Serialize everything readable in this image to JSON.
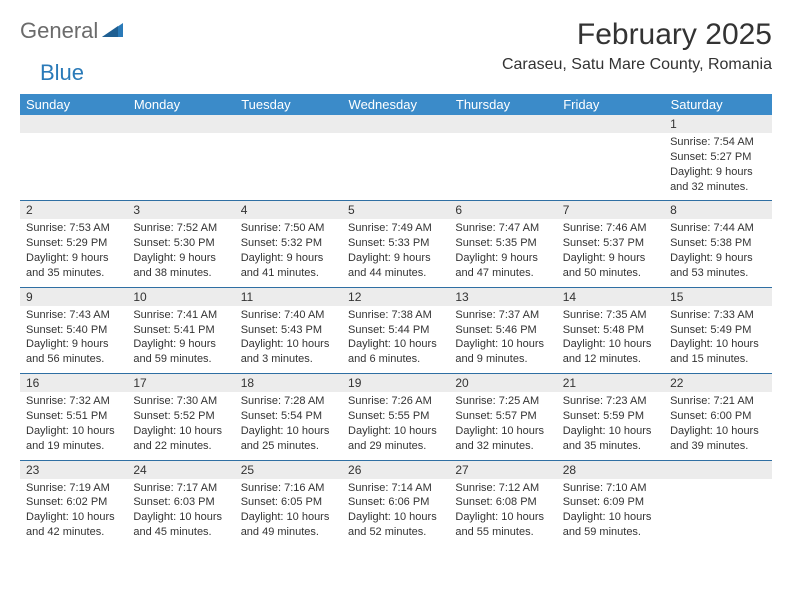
{
  "logo": {
    "general": "General",
    "blue": "Blue"
  },
  "title": "February 2025",
  "location": "Caraseu, Satu Mare County, Romania",
  "colors": {
    "header_bg": "#3b8bc9",
    "header_text": "#ffffff",
    "daynum_bg": "#ececec",
    "week_border": "#2f6fa3",
    "text": "#333333",
    "logo_gray": "#6b6b6b",
    "logo_blue": "#2a7ab8"
  },
  "dow": [
    "Sunday",
    "Monday",
    "Tuesday",
    "Wednesday",
    "Thursday",
    "Friday",
    "Saturday"
  ],
  "weeks": [
    [
      null,
      null,
      null,
      null,
      null,
      null,
      {
        "n": "1",
        "sr": "Sunrise: 7:54 AM",
        "ss": "Sunset: 5:27 PM",
        "dl": "Daylight: 9 hours and 32 minutes."
      }
    ],
    [
      {
        "n": "2",
        "sr": "Sunrise: 7:53 AM",
        "ss": "Sunset: 5:29 PM",
        "dl": "Daylight: 9 hours and 35 minutes."
      },
      {
        "n": "3",
        "sr": "Sunrise: 7:52 AM",
        "ss": "Sunset: 5:30 PM",
        "dl": "Daylight: 9 hours and 38 minutes."
      },
      {
        "n": "4",
        "sr": "Sunrise: 7:50 AM",
        "ss": "Sunset: 5:32 PM",
        "dl": "Daylight: 9 hours and 41 minutes."
      },
      {
        "n": "5",
        "sr": "Sunrise: 7:49 AM",
        "ss": "Sunset: 5:33 PM",
        "dl": "Daylight: 9 hours and 44 minutes."
      },
      {
        "n": "6",
        "sr": "Sunrise: 7:47 AM",
        "ss": "Sunset: 5:35 PM",
        "dl": "Daylight: 9 hours and 47 minutes."
      },
      {
        "n": "7",
        "sr": "Sunrise: 7:46 AM",
        "ss": "Sunset: 5:37 PM",
        "dl": "Daylight: 9 hours and 50 minutes."
      },
      {
        "n": "8",
        "sr": "Sunrise: 7:44 AM",
        "ss": "Sunset: 5:38 PM",
        "dl": "Daylight: 9 hours and 53 minutes."
      }
    ],
    [
      {
        "n": "9",
        "sr": "Sunrise: 7:43 AM",
        "ss": "Sunset: 5:40 PM",
        "dl": "Daylight: 9 hours and 56 minutes."
      },
      {
        "n": "10",
        "sr": "Sunrise: 7:41 AM",
        "ss": "Sunset: 5:41 PM",
        "dl": "Daylight: 9 hours and 59 minutes."
      },
      {
        "n": "11",
        "sr": "Sunrise: 7:40 AM",
        "ss": "Sunset: 5:43 PM",
        "dl": "Daylight: 10 hours and 3 minutes."
      },
      {
        "n": "12",
        "sr": "Sunrise: 7:38 AM",
        "ss": "Sunset: 5:44 PM",
        "dl": "Daylight: 10 hours and 6 minutes."
      },
      {
        "n": "13",
        "sr": "Sunrise: 7:37 AM",
        "ss": "Sunset: 5:46 PM",
        "dl": "Daylight: 10 hours and 9 minutes."
      },
      {
        "n": "14",
        "sr": "Sunrise: 7:35 AM",
        "ss": "Sunset: 5:48 PM",
        "dl": "Daylight: 10 hours and 12 minutes."
      },
      {
        "n": "15",
        "sr": "Sunrise: 7:33 AM",
        "ss": "Sunset: 5:49 PM",
        "dl": "Daylight: 10 hours and 15 minutes."
      }
    ],
    [
      {
        "n": "16",
        "sr": "Sunrise: 7:32 AM",
        "ss": "Sunset: 5:51 PM",
        "dl": "Daylight: 10 hours and 19 minutes."
      },
      {
        "n": "17",
        "sr": "Sunrise: 7:30 AM",
        "ss": "Sunset: 5:52 PM",
        "dl": "Daylight: 10 hours and 22 minutes."
      },
      {
        "n": "18",
        "sr": "Sunrise: 7:28 AM",
        "ss": "Sunset: 5:54 PM",
        "dl": "Daylight: 10 hours and 25 minutes."
      },
      {
        "n": "19",
        "sr": "Sunrise: 7:26 AM",
        "ss": "Sunset: 5:55 PM",
        "dl": "Daylight: 10 hours and 29 minutes."
      },
      {
        "n": "20",
        "sr": "Sunrise: 7:25 AM",
        "ss": "Sunset: 5:57 PM",
        "dl": "Daylight: 10 hours and 32 minutes."
      },
      {
        "n": "21",
        "sr": "Sunrise: 7:23 AM",
        "ss": "Sunset: 5:59 PM",
        "dl": "Daylight: 10 hours and 35 minutes."
      },
      {
        "n": "22",
        "sr": "Sunrise: 7:21 AM",
        "ss": "Sunset: 6:00 PM",
        "dl": "Daylight: 10 hours and 39 minutes."
      }
    ],
    [
      {
        "n": "23",
        "sr": "Sunrise: 7:19 AM",
        "ss": "Sunset: 6:02 PM",
        "dl": "Daylight: 10 hours and 42 minutes."
      },
      {
        "n": "24",
        "sr": "Sunrise: 7:17 AM",
        "ss": "Sunset: 6:03 PM",
        "dl": "Daylight: 10 hours and 45 minutes."
      },
      {
        "n": "25",
        "sr": "Sunrise: 7:16 AM",
        "ss": "Sunset: 6:05 PM",
        "dl": "Daylight: 10 hours and 49 minutes."
      },
      {
        "n": "26",
        "sr": "Sunrise: 7:14 AM",
        "ss": "Sunset: 6:06 PM",
        "dl": "Daylight: 10 hours and 52 minutes."
      },
      {
        "n": "27",
        "sr": "Sunrise: 7:12 AM",
        "ss": "Sunset: 6:08 PM",
        "dl": "Daylight: 10 hours and 55 minutes."
      },
      {
        "n": "28",
        "sr": "Sunrise: 7:10 AM",
        "ss": "Sunset: 6:09 PM",
        "dl": "Daylight: 10 hours and 59 minutes."
      },
      null
    ]
  ]
}
